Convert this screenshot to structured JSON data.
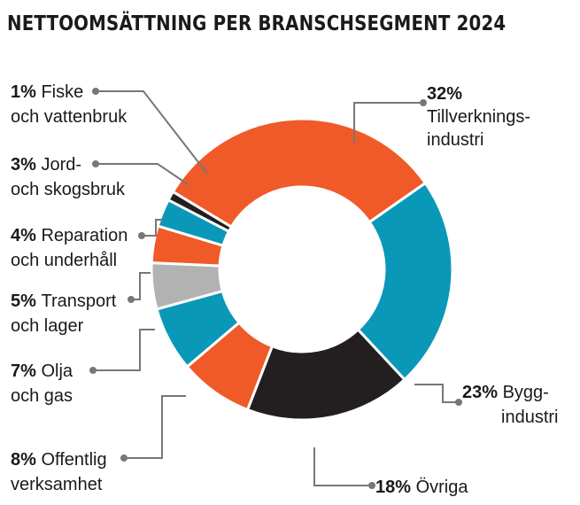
{
  "chart_data": {
    "type": "pie",
    "title": "NETTOOMSÄTTNING PER BRANSCHSEGMENT 2024",
    "slices": [
      {
        "pct": "32%",
        "value": 32,
        "line1": "Tillverknings-",
        "line2": "industri",
        "color": "#f05a28"
      },
      {
        "pct": "23%",
        "value": 23,
        "line1": "Bygg-",
        "line2": "industri",
        "color": "#0a98b8"
      },
      {
        "pct": "18%",
        "value": 18,
        "line1": "Övriga",
        "line2": "",
        "color": "#231f20"
      },
      {
        "pct": "8%",
        "value": 8,
        "line1": "Offentlig",
        "line2": "verksamhet",
        "color": "#f05a28"
      },
      {
        "pct": "7%",
        "value": 7,
        "line1": "Olja",
        "line2": "och gas",
        "color": "#0a98b8"
      },
      {
        "pct": "5%",
        "value": 5,
        "line1": "Transport",
        "line2": "och lager",
        "color": "#b2b2b2"
      },
      {
        "pct": "4%",
        "value": 4,
        "line1": "Reparation",
        "line2": "och underhåll",
        "color": "#f05a28"
      },
      {
        "pct": "3%",
        "value": 3,
        "line1": "Jord-",
        "line2": "och skogsbruk",
        "color": "#0a98b8"
      },
      {
        "pct": "1%",
        "value": 1,
        "line1": "Fiske",
        "line2": "och vattenbruk",
        "color": "#231f20"
      }
    ]
  }
}
